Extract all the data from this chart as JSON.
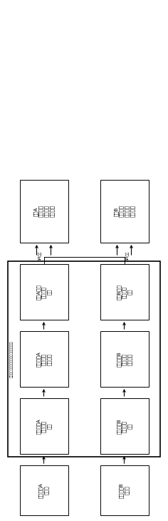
{
  "bg_color": "#ffffff",
  "boxes": {
    "left_top": "通道A\n控制规律\n计算模块\n输出控制",
    "right_top": "通道B\n控制规律\n计算模块\n输出控制",
    "left_dsp": "通道A数字\n信号处理\n模块",
    "right_dsp": "通道B数字\n信号处理\n模块",
    "left_filter": "数据通道A\n信号调理\n滤波模块",
    "right_filter": "数据通道B\n信号调理\n滤波模块",
    "left_collect": "控制通道A\n数据采集\n模块",
    "right_collect": "控制通道B\n数据采集\n模块",
    "left_sensor": "控制通道A\n传感器",
    "right_sensor": "控制通道B\n传感器"
  },
  "outer_label": "发动机双通道电子控制系统数据采集模块",
  "spi_label": "SPI总线"
}
